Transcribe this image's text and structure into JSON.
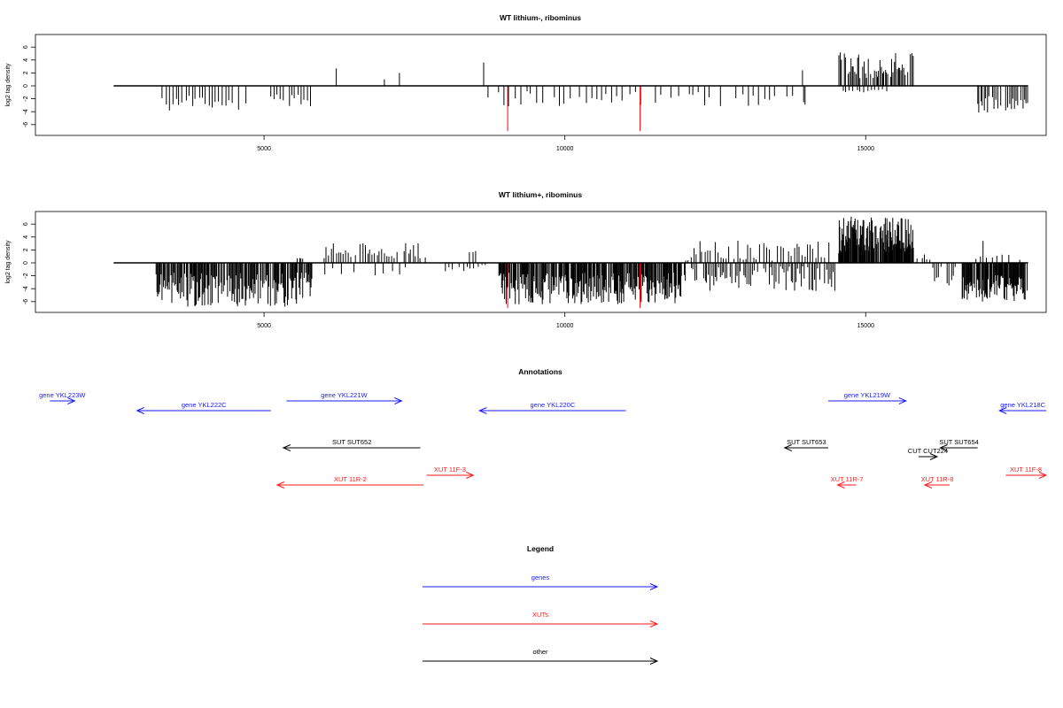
{
  "colors": {
    "gene": "#1a1aff",
    "xut": "#ff1a1a",
    "other": "#000000",
    "marker": "#ff0000",
    "bar": "#000000"
  },
  "chart_data": [
    {
      "type": "bar",
      "title": "WT lithium-, ribominus",
      "ylabel": "log2 tag density",
      "xlim": [
        1200,
        18000
      ],
      "ylim": [
        -7,
        8
      ],
      "xticks": [
        5000,
        10000,
        15000
      ],
      "yticks": [
        -6,
        -4,
        -2,
        0,
        2,
        4,
        6
      ],
      "baseline": [
        2500,
        17700
      ],
      "markers": [
        {
          "x": 9050,
          "y": -7
        },
        {
          "x": 11250,
          "y": -7
        }
      ],
      "clusters": [
        {
          "from": 3300,
          "to": 4700,
          "step": 55,
          "sign": -1,
          "min": 1.5,
          "max": 4.2
        },
        {
          "from": 5100,
          "to": 5750,
          "step": 50,
          "sign": -1,
          "min": 1.2,
          "max": 3.6
        },
        {
          "from": 8700,
          "to": 13800,
          "step": 90,
          "sign": -1,
          "min": 0.8,
          "max": 3.2
        },
        {
          "from": 13950,
          "to": 14000,
          "step": 40,
          "sign": -1,
          "min": 2.5,
          "max": 3.4
        },
        {
          "from": 14550,
          "to": 15800,
          "step": 22,
          "sign": 1,
          "min": 1.2,
          "max": 5.2
        },
        {
          "from": 14600,
          "to": 15400,
          "step": 60,
          "sign": -1,
          "min": 0.5,
          "max": 1.3
        },
        {
          "from": 16200,
          "to": 16220,
          "step": 40,
          "sign": -1,
          "min": 0.8,
          "max": 1
        },
        {
          "from": 16850,
          "to": 17700,
          "step": 28,
          "sign": -1,
          "min": 1.5,
          "max": 4.2
        }
      ],
      "peaks": [
        {
          "x": 6200,
          "y": 2.7
        },
        {
          "x": 7000,
          "y": 1
        },
        {
          "x": 7250,
          "y": 2
        },
        {
          "x": 8650,
          "y": 3.6
        },
        {
          "x": 13950,
          "y": 2.4
        }
      ]
    },
    {
      "type": "bar",
      "title": "WT lithium+, ribominus",
      "ylabel": "log2 tag density",
      "xlim": [
        1200,
        18000
      ],
      "ylim": [
        -7,
        8
      ],
      "xticks": [
        5000,
        10000,
        15000
      ],
      "yticks": [
        -6,
        -4,
        -2,
        0,
        2,
        4,
        6
      ],
      "baseline": [
        2500,
        17700
      ],
      "markers": [
        {
          "x": 9050,
          "y": -7
        },
        {
          "x": 11250,
          "y": -7
        }
      ],
      "clusters": [
        {
          "from": 3200,
          "to": 5800,
          "step": 14,
          "sign": -1,
          "min": 1.5,
          "max": 6.8
        },
        {
          "from": 5550,
          "to": 5650,
          "step": 30,
          "sign": 1,
          "min": 0.5,
          "max": 1.3
        },
        {
          "from": 5950,
          "to": 7700,
          "step": 40,
          "sign": 1,
          "min": 0.6,
          "max": 3.1
        },
        {
          "from": 6000,
          "to": 7400,
          "step": 120,
          "sign": -1,
          "min": 0.4,
          "max": 2.2
        },
        {
          "from": 8000,
          "to": 8800,
          "step": 60,
          "sign": -1,
          "min": 0.3,
          "max": 1.6
        },
        {
          "from": 8400,
          "to": 8500,
          "step": 50,
          "sign": 1,
          "min": 1.5,
          "max": 3
        },
        {
          "from": 8900,
          "to": 12000,
          "step": 12,
          "sign": -1,
          "min": 1.5,
          "max": 6.5
        },
        {
          "from": 12100,
          "to": 14500,
          "step": 28,
          "sign": -1,
          "min": 0.5,
          "max": 4.5
        },
        {
          "from": 12000,
          "to": 14400,
          "step": 45,
          "sign": 1,
          "min": 0.3,
          "max": 3.5
        },
        {
          "from": 14550,
          "to": 15800,
          "step": 9,
          "sign": 1,
          "min": 1.5,
          "max": 7.2
        },
        {
          "from": 15850,
          "to": 16050,
          "step": 40,
          "sign": 1,
          "min": 0.4,
          "max": 1.5
        },
        {
          "from": 16100,
          "to": 16500,
          "step": 35,
          "sign": -1,
          "min": 0.5,
          "max": 3.5
        },
        {
          "from": 16600,
          "to": 17700,
          "step": 12,
          "sign": -1,
          "min": 1.5,
          "max": 6
        },
        {
          "from": 16800,
          "to": 17600,
          "step": 90,
          "sign": 1,
          "min": 0.4,
          "max": 1.4
        }
      ],
      "peaks": [
        {
          "x": 16950,
          "y": 3.4
        }
      ]
    }
  ],
  "annotations": {
    "title": "Annotations",
    "xlim": [
      1200,
      18000
    ],
    "features": [
      {
        "label": "gene YKL223W",
        "kind": "gene",
        "x1": 2000,
        "x2": 2400,
        "dir": "right",
        "row": 0
      },
      {
        "label": "gene YKL222C",
        "kind": "gene",
        "x1": 3400,
        "x2": 5550,
        "dir": "left",
        "row": 1
      },
      {
        "label": "gene YKL221W",
        "kind": "gene",
        "x1": 5800,
        "x2": 7650,
        "dir": "right",
        "row": 0
      },
      {
        "label": "gene YKL220C",
        "kind": "gene",
        "x1": 8900,
        "x2": 11250,
        "dir": "left",
        "row": 1
      },
      {
        "label": "gene YKL219W",
        "kind": "gene",
        "x1": 14500,
        "x2": 15750,
        "dir": "right",
        "row": 0
      },
      {
        "label": "gene YKL218C",
        "kind": "gene",
        "x1": 17250,
        "x2": 18000,
        "dir": "left",
        "row": 1
      },
      {
        "label": "SUT SUT652",
        "kind": "other",
        "x1": 5750,
        "x2": 7950,
        "dir": "left",
        "row": 2
      },
      {
        "label": "SUT SUT653",
        "kind": "other",
        "x1": 13800,
        "x2": 14500,
        "dir": "left",
        "row": 2
      },
      {
        "label": "SUT SUT654",
        "kind": "other",
        "x1": 16300,
        "x2": 16900,
        "dir": "left",
        "row": 2
      },
      {
        "label": "CUT CUT224",
        "kind": "other",
        "x1": 15950,
        "x2": 16250,
        "dir": "right",
        "row": 3
      },
      {
        "label": "XUT 11F-3",
        "kind": "xut",
        "x1": 8050,
        "x2": 8800,
        "dir": "right",
        "row": 4
      },
      {
        "label": "XUT 11F-8",
        "kind": "xut",
        "x1": 17350,
        "x2": 18000,
        "dir": "right",
        "row": 4
      },
      {
        "label": "XUT 11R-2",
        "kind": "xut",
        "x1": 5650,
        "x2": 8000,
        "dir": "left",
        "row": 5
      },
      {
        "label": "XUT 11R-7",
        "kind": "xut",
        "x1": 14650,
        "x2": 14950,
        "dir": "left",
        "row": 5
      },
      {
        "label": "XUT 11R-8",
        "kind": "xut",
        "x1": 16050,
        "x2": 16450,
        "dir": "left",
        "row": 5
      }
    ]
  },
  "legend": {
    "title": "Legend",
    "items": [
      {
        "label": "genes",
        "kind": "gene"
      },
      {
        "label": "XUTs",
        "kind": "xut"
      },
      {
        "label": "other",
        "kind": "other"
      }
    ]
  }
}
